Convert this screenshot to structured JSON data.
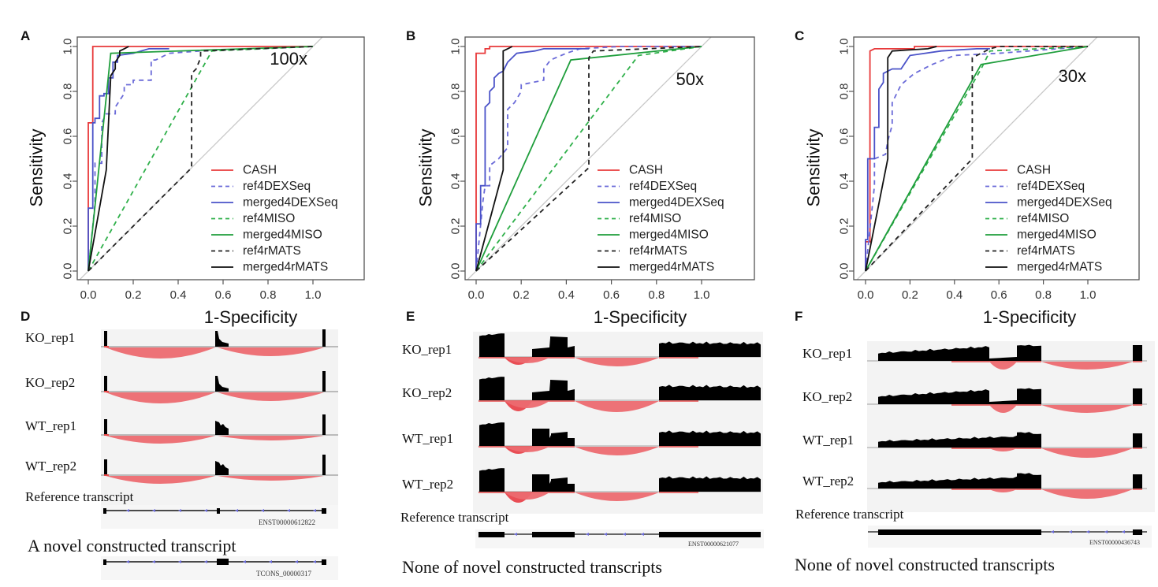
{
  "figure": {
    "panel_letters": [
      "A",
      "B",
      "C",
      "D",
      "E",
      "F"
    ]
  },
  "chart_data": [
    {
      "type": "line",
      "panel": "A",
      "annotation": "100x",
      "xlabel": "1-Specificity",
      "ylabel": "Sensitivity",
      "xlim": [
        0,
        1
      ],
      "ylim": [
        0,
        1
      ],
      "xticks": [
        "0.0",
        "0.2",
        "0.4",
        "0.6",
        "0.8",
        "1.0"
      ],
      "yticks": [
        "0.0",
        "0.2",
        "0.4",
        "0.6",
        "0.8",
        "1.0"
      ],
      "legend_position": "bottom-right",
      "diagonal_reference": true,
      "series": [
        {
          "name": "CASH",
          "color": "#e8393a",
          "dash": false,
          "x": [
            0,
            0,
            0.02,
            0.02,
            1
          ],
          "y": [
            0,
            0.66,
            0.66,
            1,
            1
          ]
        },
        {
          "name": "ref4DEXSeq",
          "color": "#6a6ad8",
          "dash": true,
          "x": [
            0,
            0.03,
            0.03,
            0.06,
            0.06,
            0.08,
            0.12,
            0.12,
            0.16,
            0.16,
            0.2,
            0.2,
            0.28,
            0.28,
            0.3,
            0.36,
            0.5,
            1
          ],
          "y": [
            0,
            0.3,
            0.48,
            0.48,
            0.66,
            0.7,
            0.7,
            0.73,
            0.79,
            0.83,
            0.83,
            0.85,
            0.85,
            0.94,
            0.94,
            0.97,
            0.98,
            1
          ]
        },
        {
          "name": "merged4DEXSeq",
          "color": "#4a52c8",
          "dash": false,
          "x": [
            0,
            0,
            0.02,
            0.02,
            0.03,
            0.03,
            0.05,
            0.05,
            0.07,
            0.07,
            0.09,
            0.09,
            0.11,
            0.11,
            0.13,
            0.13,
            0.2,
            0.27,
            0.36
          ],
          "y": [
            0,
            0.28,
            0.28,
            0.66,
            0.66,
            0.68,
            0.68,
            0.78,
            0.78,
            0.79,
            0.79,
            0.86,
            0.86,
            0.93,
            0.93,
            0.96,
            0.97,
            0.99,
            0.99
          ]
        },
        {
          "name": "ref4MISO",
          "color": "#2fb04a",
          "dash": true,
          "x": [
            0,
            0.55,
            1
          ],
          "y": [
            0,
            0.98,
            1
          ]
        },
        {
          "name": "merged4MISO",
          "color": "#1f9e3c",
          "dash": false,
          "x": [
            0,
            0.1,
            1
          ],
          "y": [
            0,
            0.97,
            1
          ]
        },
        {
          "name": "ref4rMATS",
          "color": "#222222",
          "dash": true,
          "x": [
            0,
            0.46,
            0.46,
            0.48,
            0.5,
            0.5,
            1
          ],
          "y": [
            0,
            0.46,
            0.88,
            0.9,
            0.95,
            0.98,
            1
          ]
        },
        {
          "name": "merged4rMATS",
          "color": "#111111",
          "dash": false,
          "x": [
            0,
            0.08,
            0.1,
            0.1,
            0.12,
            0.12,
            0.14,
            0.14,
            0.16,
            0.18
          ],
          "y": [
            0,
            0.45,
            0.87,
            0.87,
            0.9,
            0.93,
            0.96,
            0.98,
            0.99,
            1
          ]
        }
      ]
    },
    {
      "type": "line",
      "panel": "B",
      "annotation": "50x",
      "xlabel": "1-Specificity",
      "ylabel": "Sensitivity",
      "xlim": [
        0,
        1
      ],
      "ylim": [
        0,
        1
      ],
      "xticks": [
        "0.0",
        "0.2",
        "0.4",
        "0.6",
        "0.8",
        "1.0"
      ],
      "yticks": [
        "0.0",
        "0.2",
        "0.4",
        "0.6",
        "0.8",
        "1.0"
      ],
      "legend_position": "bottom-right",
      "diagonal_reference": true,
      "series": [
        {
          "name": "CASH",
          "color": "#e8393a",
          "dash": false,
          "x": [
            0,
            0,
            0.04,
            0.04,
            0.06,
            0.06,
            1
          ],
          "y": [
            0,
            0.97,
            0.97,
            0.99,
            0.99,
            1,
            1
          ]
        },
        {
          "name": "ref4DEXSeq",
          "color": "#6a6ad8",
          "dash": true,
          "x": [
            0,
            0.03,
            0.04,
            0.06,
            0.06,
            0.1,
            0.14,
            0.14,
            0.17,
            0.2,
            0.2,
            0.3,
            0.3,
            0.33,
            0.4,
            0.46,
            0.64,
            1
          ],
          "y": [
            0,
            0.31,
            0.38,
            0.38,
            0.47,
            0.5,
            0.55,
            0.72,
            0.75,
            0.8,
            0.83,
            0.85,
            0.9,
            0.94,
            0.97,
            0.99,
            1,
            1
          ]
        },
        {
          "name": "merged4DEXSeq",
          "color": "#4a52c8",
          "dash": false,
          "x": [
            0,
            0,
            0.02,
            0.02,
            0.04,
            0.04,
            0.06,
            0.06,
            0.08,
            0.08,
            0.1,
            0.12,
            0.14,
            0.18,
            0.26,
            0.3,
            0.5
          ],
          "y": [
            0,
            0.21,
            0.21,
            0.38,
            0.38,
            0.73,
            0.75,
            0.8,
            0.82,
            0.86,
            0.88,
            0.89,
            0.93,
            0.97,
            0.98,
            0.99,
            0.99
          ]
        },
        {
          "name": "ref4MISO",
          "color": "#2fb04a",
          "dash": true,
          "x": [
            0,
            0.72,
            1
          ],
          "y": [
            0,
            0.96,
            1
          ]
        },
        {
          "name": "merged4MISO",
          "color": "#1f9e3c",
          "dash": false,
          "x": [
            0,
            0.42,
            1
          ],
          "y": [
            0,
            0.94,
            1
          ]
        },
        {
          "name": "ref4rMATS",
          "color": "#222222",
          "dash": true,
          "x": [
            0,
            0.5,
            0.5,
            0.52,
            1
          ],
          "y": [
            0,
            0.46,
            0.95,
            0.98,
            1
          ]
        },
        {
          "name": "merged4rMATS",
          "color": "#111111",
          "dash": false,
          "x": [
            0,
            0.12,
            0.12,
            0.14,
            0.16
          ],
          "y": [
            0,
            0.45,
            0.98,
            0.99,
            1
          ]
        }
      ]
    },
    {
      "type": "line",
      "panel": "C",
      "annotation": "30x",
      "xlabel": "1-Specificity",
      "ylabel": "Sensitivity",
      "xlim": [
        0,
        1
      ],
      "ylim": [
        0,
        1
      ],
      "xticks": [
        "0.0",
        "0.2",
        "0.4",
        "0.6",
        "0.8",
        "1.0"
      ],
      "yticks": [
        "0.0",
        "0.2",
        "0.4",
        "0.6",
        "0.8",
        "1.0"
      ],
      "legend_position": "bottom-right",
      "diagonal_reference": true,
      "series": [
        {
          "name": "CASH",
          "color": "#e8393a",
          "dash": false,
          "x": [
            0,
            0,
            0.02,
            0.02,
            0.04,
            0.22,
            0.22,
            1
          ],
          "y": [
            0,
            0.13,
            0.13,
            0.98,
            0.99,
            0.99,
            1,
            1
          ]
        },
        {
          "name": "ref4DEXSeq",
          "color": "#6a6ad8",
          "dash": true,
          "x": [
            0,
            0.04,
            0.04,
            0.09,
            0.1,
            0.12,
            0.12,
            0.16,
            0.22,
            0.3,
            0.4,
            0.6,
            1
          ],
          "y": [
            0,
            0.38,
            0.5,
            0.52,
            0.58,
            0.65,
            0.75,
            0.83,
            0.88,
            0.92,
            0.96,
            0.97,
            1
          ]
        },
        {
          "name": "merged4DEXSeq",
          "color": "#4a52c8",
          "dash": false,
          "x": [
            0,
            0,
            0.01,
            0.01,
            0.04,
            0.04,
            0.06,
            0.06,
            0.08,
            0.08,
            0.12,
            0.16,
            0.18,
            0.2,
            0.34,
            0.5,
            0.56
          ],
          "y": [
            0,
            0.14,
            0.14,
            0.5,
            0.5,
            0.64,
            0.64,
            0.81,
            0.84,
            0.88,
            0.9,
            0.9,
            0.93,
            0.96,
            0.98,
            0.99,
            0.99
          ]
        },
        {
          "name": "ref4MISO",
          "color": "#2fb04a",
          "dash": true,
          "x": [
            0,
            0.52,
            0.56,
            1
          ],
          "y": [
            0,
            0.9,
            0.98,
            1
          ]
        },
        {
          "name": "merged4MISO",
          "color": "#1f9e3c",
          "dash": false,
          "x": [
            0,
            0.52,
            1
          ],
          "y": [
            0,
            0.92,
            1
          ]
        },
        {
          "name": "ref4rMATS",
          "color": "#222222",
          "dash": true,
          "x": [
            0,
            0.48,
            0.48,
            0.56,
            0.6,
            1
          ],
          "y": [
            0,
            0.5,
            0.95,
            0.99,
            1,
            1
          ]
        },
        {
          "name": "merged4rMATS",
          "color": "#111111",
          "dash": false,
          "x": [
            0,
            0.1,
            0.1,
            0.12,
            0.28,
            0.32
          ],
          "y": [
            0,
            0.5,
            0.95,
            0.98,
            0.99,
            1
          ]
        }
      ]
    }
  ],
  "tracks": [
    {
      "panel": "D",
      "samples": [
        "KO_rep1",
        "KO_rep2",
        "WT_rep1",
        "WT_rep2"
      ],
      "reference_label": "Reference transcript",
      "reference_id": "ENST00000612822",
      "novel_label": "A novel constructed transcript",
      "novel_id": "TCONS_00000317"
    },
    {
      "panel": "E",
      "samples": [
        "KO_rep1",
        "KO_rep2",
        "WT_rep1",
        "WT_rep2"
      ],
      "reference_label": "Reference transcript",
      "reference_id": "ENST00000621077",
      "novel_label": "None of novel constructed transcripts"
    },
    {
      "panel": "F",
      "samples": [
        "KO_rep1",
        "KO_rep2",
        "WT_rep1",
        "WT_rep2"
      ],
      "reference_label": "Reference transcript",
      "reference_id": "ENST00000436743",
      "novel_label": "None of novel constructed transcripts"
    }
  ]
}
